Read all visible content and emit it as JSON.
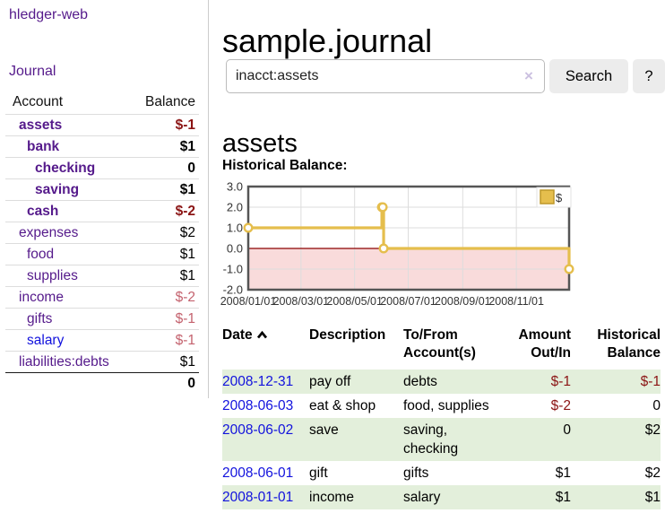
{
  "colors": {
    "link_purple": "#551a8b",
    "link_blue": "#1212dd",
    "negative_strong": "#8b1414",
    "negative_soft": "#c4626e",
    "row_green": "#e3efdb",
    "chart_gold": "#e5be4d",
    "chart_negative_area": "#f9dbdb",
    "chart_zero_line": "#8b0000"
  },
  "sidebar": {
    "app_title": "hledger-web",
    "nav": {
      "journal": "Journal"
    },
    "accounts_table": {
      "headers": {
        "account": "Account",
        "balance": "Balance"
      },
      "rows": [
        {
          "account": "assets",
          "balance": "$-1",
          "indent": 1,
          "bold": true,
          "account_color": "purple",
          "balance_color": "negstrong"
        },
        {
          "account": "bank",
          "balance": "$1",
          "indent": 2,
          "bold": true,
          "account_color": "purple",
          "balance_color": "normal"
        },
        {
          "account": "checking",
          "balance": "0",
          "indent": 3,
          "bold": true,
          "account_color": "purple",
          "balance_color": "normal"
        },
        {
          "account": "saving",
          "balance": "$1",
          "indent": 3,
          "bold": true,
          "account_color": "purple",
          "balance_color": "normal"
        },
        {
          "account": "cash",
          "balance": "$-2",
          "indent": 2,
          "bold": true,
          "account_color": "purple",
          "balance_color": "negstrong"
        },
        {
          "account": "expenses",
          "balance": "$2",
          "indent": 1,
          "bold": false,
          "account_color": "purple",
          "balance_color": "normal"
        },
        {
          "account": "food",
          "balance": "$1",
          "indent": 2,
          "bold": false,
          "account_color": "purple",
          "balance_color": "normal"
        },
        {
          "account": "supplies",
          "balance": "$1",
          "indent": 2,
          "bold": false,
          "account_color": "purple",
          "balance_color": "normal"
        },
        {
          "account": "income",
          "balance": "$-2",
          "indent": 1,
          "bold": false,
          "account_color": "purple",
          "balance_color": "negsoft"
        },
        {
          "account": "gifts",
          "balance": "$-1",
          "indent": 2,
          "bold": false,
          "account_color": "purple",
          "balance_color": "negsoft"
        },
        {
          "account": "salary",
          "balance": "$-1",
          "indent": 2,
          "bold": false,
          "account_color": "blue",
          "balance_color": "negsoft"
        },
        {
          "account": "liabilities:debts",
          "balance": "$1",
          "indent": 1,
          "bold": false,
          "account_color": "purple",
          "balance_color": "normal"
        }
      ],
      "total": "0"
    }
  },
  "main": {
    "title": "sample.journal",
    "search": {
      "value": "inacct:assets",
      "clear_label": "×",
      "button": "Search",
      "help_button": "?"
    },
    "account_heading": "assets",
    "chart_title": "Historical Balance:"
  },
  "chart_data": {
    "type": "line",
    "step": true,
    "title": "Historical Balance",
    "series": [
      {
        "name": "$",
        "points": [
          [
            "2008-01-01",
            1
          ],
          [
            "2008-06-01",
            2
          ],
          [
            "2008-06-02",
            2
          ],
          [
            "2008-06-03",
            0
          ],
          [
            "2008-12-31",
            -1
          ]
        ]
      }
    ],
    "x_range": [
      "2008-01-01",
      "2008-12-31"
    ],
    "ylim": [
      -2,
      3
    ],
    "y_ticks": [
      "3.0",
      "2.0",
      "1.0",
      "0.0",
      "-1.0",
      "-2.0"
    ],
    "x_ticks": [
      "2008/01/01",
      "2008/03/01",
      "2008/05/01",
      "2008/07/01",
      "2008/09/01",
      "2008/11/01"
    ],
    "grid": true,
    "legend_position": "top-right",
    "legend": [
      {
        "label": "$",
        "color": "#e5be4d"
      }
    ],
    "negative_region_shaded": true
  },
  "register": {
    "headers": {
      "date": "Date",
      "description": "Description",
      "accounts": "To/From Account(s)",
      "amount": "Amount Out/In",
      "balance": "Historical Balance"
    },
    "sort": {
      "column": "date",
      "direction": "ascending"
    },
    "rows": [
      {
        "date": "2008-12-31",
        "description": "pay off",
        "accounts": "debts",
        "amount": "$-1",
        "amount_color": "neg",
        "balance": "$-1",
        "balance_color": "neg"
      },
      {
        "date": "2008-06-03",
        "description": "eat & shop",
        "accounts": "food, supplies",
        "amount": "$-2",
        "amount_color": "neg",
        "balance": "0",
        "balance_color": "normal"
      },
      {
        "date": "2008-06-02",
        "description": "save",
        "accounts": "saving, checking",
        "amount": "0",
        "amount_color": "normal",
        "balance": "$2",
        "balance_color": "normal"
      },
      {
        "date": "2008-06-01",
        "description": "gift",
        "accounts": "gifts",
        "amount": "$1",
        "amount_color": "normal",
        "balance": "$2",
        "balance_color": "normal"
      },
      {
        "date": "2008-01-01",
        "description": "income",
        "accounts": "salary",
        "amount": "$1",
        "amount_color": "normal",
        "balance": "$1",
        "balance_color": "normal"
      }
    ]
  }
}
